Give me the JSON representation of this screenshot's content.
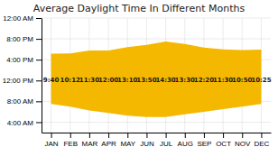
{
  "chart_data": {
    "type": "range_area",
    "title": "Average Daylight Time In Different Months",
    "categories": [
      "JAN",
      "FEB",
      "MAR",
      "APR",
      "MAY",
      "JUN",
      "JUL",
      "AUG",
      "SEP",
      "OCT",
      "NOV",
      "DEC"
    ],
    "low": [
      7.5,
      7.0,
      6.25,
      5.75,
      5.25,
      5.0,
      5.0,
      5.5,
      6.0,
      6.5,
      7.0,
      7.5
    ],
    "high": [
      17.17,
      17.2,
      17.75,
      17.75,
      18.42,
      18.83,
      19.5,
      19.0,
      18.33,
      18.0,
      17.83,
      17.92
    ],
    "color": "#F5B800",
    "ylim": [
      2,
      24
    ],
    "yticks": [
      {
        "value": 4,
        "label": "4:00 AM"
      },
      {
        "value": 8,
        "label": "8:00 AM"
      },
      {
        "value": 12,
        "label": "12:00 PM"
      },
      {
        "value": 16,
        "label": "4:00 PM"
      },
      {
        "value": 20,
        "label": "8:00 PM"
      },
      {
        "value": 24,
        "label": "12:00 AM"
      }
    ],
    "grid": true,
    "annotations": [
      {
        "text": "9:40",
        "x": "JAN",
        "y": 12
      },
      {
        "text": "10:12",
        "x": "FEB",
        "y": 12
      },
      {
        "text": "11:30",
        "x": "MAR",
        "y": 12
      },
      {
        "text": "12:00",
        "x": "APR",
        "y": 12
      },
      {
        "text": "13:10",
        "x": "MAY",
        "y": 12
      },
      {
        "text": "13:50",
        "x": "JUN",
        "y": 12
      },
      {
        "text": "14:30",
        "x": "JUL",
        "y": 12
      },
      {
        "text": "13:30",
        "x": "AUG",
        "y": 12
      },
      {
        "text": "12:20",
        "x": "SEP",
        "y": 12
      },
      {
        "text": "11:30",
        "x": "OCT",
        "y": 12
      },
      {
        "text": "10:50",
        "x": "NOV",
        "y": 12
      },
      {
        "text": "10:25",
        "x": "DEC",
        "y": 12
      }
    ]
  }
}
